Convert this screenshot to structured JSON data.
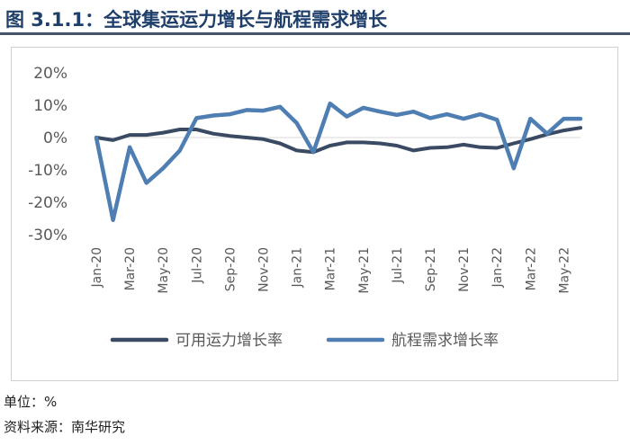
{
  "header": {
    "title": "图 3.1.1：全球集运运力增长与航程需求增长"
  },
  "footer": {
    "unit": "单位：%",
    "source": "资料来源：南华研究"
  },
  "chart_data": {
    "type": "line",
    "x": [
      "Jan-20",
      "Feb-20",
      "Mar-20",
      "Apr-20",
      "May-20",
      "Jun-20",
      "Jul-20",
      "Aug-20",
      "Sep-20",
      "Oct-20",
      "Nov-20",
      "Dec-20",
      "Jan-21",
      "Feb-21",
      "Mar-21",
      "Apr-21",
      "May-21",
      "Jun-21",
      "Jul-21",
      "Aug-21",
      "Sep-21",
      "Oct-21",
      "Nov-21",
      "Dec-21",
      "Jan-22",
      "Feb-22",
      "Mar-22",
      "Apr-22",
      "May-22",
      "Jun-22"
    ],
    "x_tick_labels": [
      "Jan-20",
      "Mar-20",
      "May-20",
      "Jul-20",
      "Sep-20",
      "Nov-20",
      "Jan-21",
      "Mar-21",
      "May-21",
      "Jul-21",
      "Sep-21",
      "Nov-21",
      "Jan-22",
      "Mar-22",
      "May-22"
    ],
    "series": [
      {
        "name": "可用运力增长率",
        "color": "#3a4a63",
        "values": [
          0,
          -0.8,
          0.8,
          0.8,
          1.5,
          2.5,
          2.5,
          1.2,
          0.5,
          0,
          -0.5,
          -1.8,
          -4,
          -4.5,
          -2.5,
          -1.5,
          -1.5,
          -1.8,
          -2.5,
          -4,
          -3.2,
          -3,
          -2.2,
          -3,
          -3.2,
          -1.8,
          -0.5,
          1,
          2.2,
          3
        ]
      },
      {
        "name": "航程需求增长率",
        "color": "#4f7eb3",
        "values": [
          0,
          -25.5,
          -3,
          -14,
          -9.5,
          -4,
          6,
          6.8,
          7.2,
          8.5,
          8.3,
          9.5,
          4.5,
          -4.5,
          10.5,
          6.5,
          9.2,
          8,
          7,
          8,
          6,
          7.2,
          5.8,
          7.2,
          5.5,
          -9.5,
          5.8,
          1.2,
          5.8,
          5.8
        ]
      }
    ],
    "y_tick_labels": [
      "20%",
      "10%",
      "0%",
      "-10%",
      "-20%",
      "-30%"
    ],
    "ylim": [
      -30,
      20
    ],
    "y_ticks": [
      20,
      10,
      0,
      -10,
      -20,
      -30
    ],
    "grid": false,
    "legend_position": "bottom"
  }
}
